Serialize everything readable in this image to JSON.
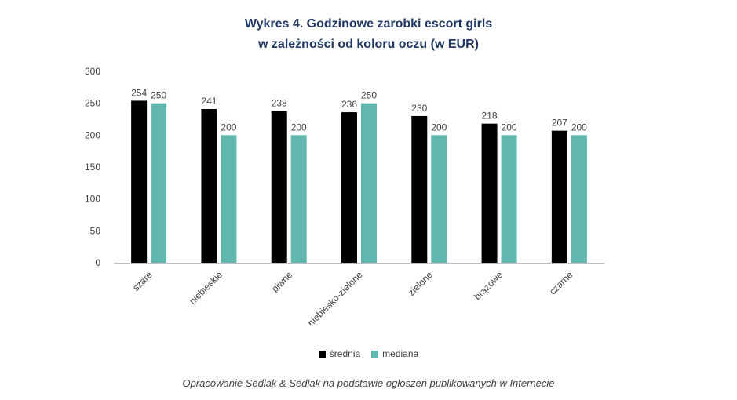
{
  "title_line1": "Wykres 4. Godzinowe zarobki escort girls",
  "title_line2": "w zależności od koloru oczu (w EUR)",
  "source": "Opracowanie Sedlak & Sedlak na podstawie ogłoszeń publikowanych w Internecie",
  "colors": {
    "srednia": "#000000",
    "mediana": "#5fb7ae",
    "axis": "#bfbfbf",
    "title": "#1f3864"
  },
  "legend": [
    {
      "label": "średnia",
      "color": "#000000"
    },
    {
      "label": "mediana",
      "color": "#5fb7ae"
    }
  ],
  "chart_data": {
    "type": "bar",
    "title": "Wykres 4. Godzinowe zarobki escort girls w zależności od koloru oczu (w EUR)",
    "categories": [
      "szare",
      "niebieskie",
      "piwne",
      "niebiesko-zielone",
      "zielone",
      "brązowe",
      "czarne"
    ],
    "series": [
      {
        "name": "średnia",
        "values": [
          254,
          241,
          238,
          236,
          230,
          218,
          207
        ]
      },
      {
        "name": "mediana",
        "values": [
          250,
          200,
          200,
          250,
          200,
          200,
          200
        ]
      }
    ],
    "ylim": [
      0,
      300
    ],
    "yticks": [
      0,
      50,
      100,
      150,
      200,
      250,
      300
    ],
    "grid": false,
    "legend_position": "bottom"
  }
}
